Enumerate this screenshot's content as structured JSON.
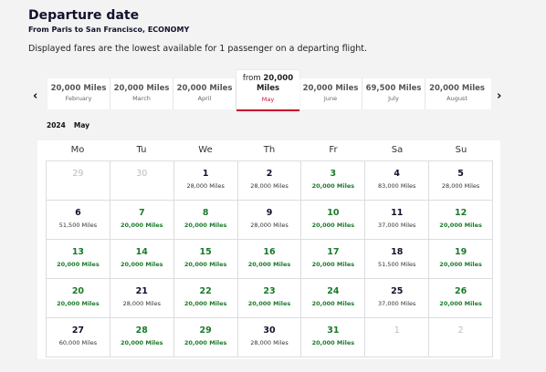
{
  "header": {
    "title": "Departure date",
    "subtitle": "From Paris to San Francisco, ECONOMY",
    "info": "Displayed fares are the lowest available for 1 passenger on a departing flight."
  },
  "nav": {
    "prev_icon": "‹",
    "next_icon": "›"
  },
  "months": [
    {
      "miles": "20,000 Miles",
      "name": "February"
    },
    {
      "miles": "20,000 Miles",
      "name": "March"
    },
    {
      "miles": "20,000 Miles",
      "name": "April"
    },
    {
      "from": "from",
      "miles_top": "20,000",
      "miles_bottom": "Miles",
      "name": "May",
      "selected": true
    },
    {
      "miles": "20,000 Miles",
      "name": "June"
    },
    {
      "miles": "69,500 Miles",
      "name": "July"
    },
    {
      "miles": "20,000 Miles",
      "name": "August"
    }
  ],
  "calendar": {
    "year": "2024",
    "month": "May",
    "weekdays": [
      "Mo",
      "Tu",
      "We",
      "Th",
      "Fr",
      "Sa",
      "Su"
    ],
    "weeks": [
      [
        {
          "day": "29",
          "price": "",
          "type": "other"
        },
        {
          "day": "30",
          "price": "",
          "type": "other"
        },
        {
          "day": "1",
          "price": "28,000 Miles",
          "type": "normal"
        },
        {
          "day": "2",
          "price": "28,000 Miles",
          "type": "normal"
        },
        {
          "day": "3",
          "price": "20,000 Miles",
          "type": "low"
        },
        {
          "day": "4",
          "price": "83,000 Miles",
          "type": "normal"
        },
        {
          "day": "5",
          "price": "28,000 Miles",
          "type": "normal"
        }
      ],
      [
        {
          "day": "6",
          "price": "51,500 Miles",
          "type": "normal"
        },
        {
          "day": "7",
          "price": "20,000 Miles",
          "type": "low"
        },
        {
          "day": "8",
          "price": "20,000 Miles",
          "type": "low"
        },
        {
          "day": "9",
          "price": "28,000 Miles",
          "type": "normal"
        },
        {
          "day": "10",
          "price": "20,000 Miles",
          "type": "low"
        },
        {
          "day": "11",
          "price": "37,000 Miles",
          "type": "normal"
        },
        {
          "day": "12",
          "price": "20,000 Miles",
          "type": "low"
        }
      ],
      [
        {
          "day": "13",
          "price": "20,000 Miles",
          "type": "low"
        },
        {
          "day": "14",
          "price": "20,000 Miles",
          "type": "low"
        },
        {
          "day": "15",
          "price": "20,000 Miles",
          "type": "low"
        },
        {
          "day": "16",
          "price": "20,000 Miles",
          "type": "low"
        },
        {
          "day": "17",
          "price": "20,000 Miles",
          "type": "low"
        },
        {
          "day": "18",
          "price": "51,500 Miles",
          "type": "normal"
        },
        {
          "day": "19",
          "price": "20,000 Miles",
          "type": "low"
        }
      ],
      [
        {
          "day": "20",
          "price": "20,000 Miles",
          "type": "low"
        },
        {
          "day": "21",
          "price": "28,000 Miles",
          "type": "normal"
        },
        {
          "day": "22",
          "price": "20,000 Miles",
          "type": "low"
        },
        {
          "day": "23",
          "price": "20,000 Miles",
          "type": "low"
        },
        {
          "day": "24",
          "price": "20,000 Miles",
          "type": "low"
        },
        {
          "day": "25",
          "price": "37,000 Miles",
          "type": "normal"
        },
        {
          "day": "26",
          "price": "20,000 Miles",
          "type": "low"
        }
      ],
      [
        {
          "day": "27",
          "price": "60,000 Miles",
          "type": "normal"
        },
        {
          "day": "28",
          "price": "20,000 Miles",
          "type": "low"
        },
        {
          "day": "29",
          "price": "20,000 Miles",
          "type": "low"
        },
        {
          "day": "30",
          "price": "28,000 Miles",
          "type": "normal"
        },
        {
          "day": "31",
          "price": "20,000 Miles",
          "type": "low"
        },
        {
          "day": "1",
          "price": "",
          "type": "other"
        },
        {
          "day": "2",
          "price": "",
          "type": "other"
        }
      ]
    ]
  },
  "colors": {
    "low_fare": "#1a7a2a",
    "accent": "#c8102e",
    "text": "#11122b"
  }
}
